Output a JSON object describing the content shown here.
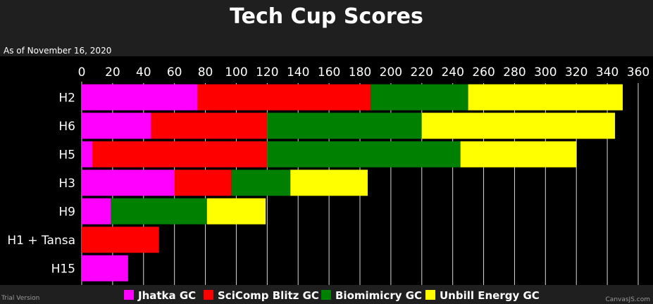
{
  "title": "Tech Cup Scores",
  "subtitle": "As of November 16, 2020",
  "watermark_left": "Trial Version",
  "watermark_right": "CanvasJS.com",
  "chart_data": {
    "type": "bar",
    "orientation": "horizontal",
    "stacked": true,
    "title": "Tech Cup Scores",
    "subtitle": "As of November 16, 2020",
    "categories": [
      "H2",
      "H6",
      "H5",
      "H3",
      "H9",
      "H1 + Tansa",
      "H15"
    ],
    "xlim": [
      0,
      360
    ],
    "x_ticks": [
      0,
      20,
      40,
      60,
      80,
      100,
      120,
      140,
      160,
      180,
      200,
      220,
      240,
      260,
      280,
      300,
      320,
      340,
      360
    ],
    "axis_position": "top",
    "grid": true,
    "legend_position": "bottom",
    "series": [
      {
        "name": "Jhatka GC",
        "color": "#ff00ff",
        "values": [
          75,
          45,
          7,
          60,
          19,
          0,
          30
        ]
      },
      {
        "name": "SciComp Blitz GC",
        "color": "#ff0000",
        "values": [
          112,
          75,
          113,
          37,
          0,
          50,
          0
        ]
      },
      {
        "name": "Biomimicry GC",
        "color": "#008000",
        "values": [
          63,
          100,
          125,
          38,
          62,
          0,
          0
        ]
      },
      {
        "name": "Unbill Energy GC",
        "color": "#ffff00",
        "values": [
          100,
          125,
          75,
          50,
          38,
          0,
          0
        ]
      }
    ]
  }
}
